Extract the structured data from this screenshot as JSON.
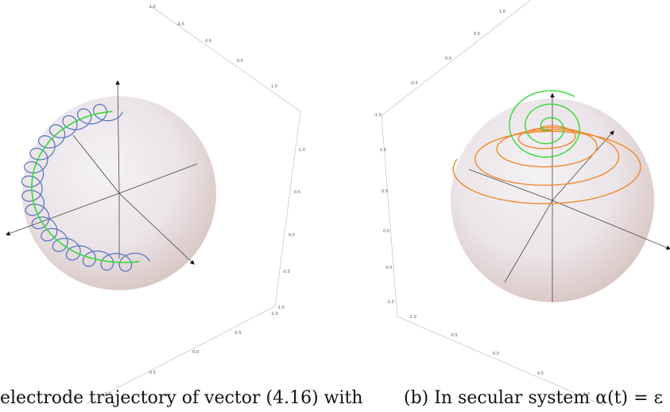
{
  "panels": [
    {
      "id": "left",
      "caption": "electrode trajectory of vector (4.16) with",
      "curves": [
        "blue-helix",
        "green-guide"
      ],
      "ticks": {
        "axis_top": [
          "-1.0",
          "-0.5",
          "0.0",
          "0.5",
          "1.0"
        ],
        "axis_right": [
          "1.0",
          "0.5",
          "0.0",
          "-0.5",
          "-1.0"
        ],
        "axis_bottom": [
          "-1.0",
          "-0.5",
          "0.0",
          "0.5",
          "1.0"
        ]
      }
    },
    {
      "id": "right",
      "caption": "(b) In secular system α(t) = ε",
      "curves": [
        "orange-spiral",
        "green-spiral"
      ],
      "ticks": {
        "axis_top": [
          "1.0",
          "0.5",
          "0.0",
          "-0.5",
          "-1.0"
        ],
        "axis_left": [
          "-1.0",
          "1.0",
          "0.5",
          "0.0",
          "-0.5",
          "-1.0"
        ],
        "axis_bottom": [
          "-1.0",
          "-0.5",
          "0.0",
          "0.5",
          "1.0"
        ]
      }
    }
  ],
  "colors": {
    "sphere_center": "#efeaf0",
    "sphere_edge": "#ddc9c6",
    "blue_curve": "#5b79c2",
    "green_curve": "#35d935",
    "orange_curve": "#f08a2a",
    "axis_line": "#444444",
    "box_line": "#c8c8c8"
  }
}
